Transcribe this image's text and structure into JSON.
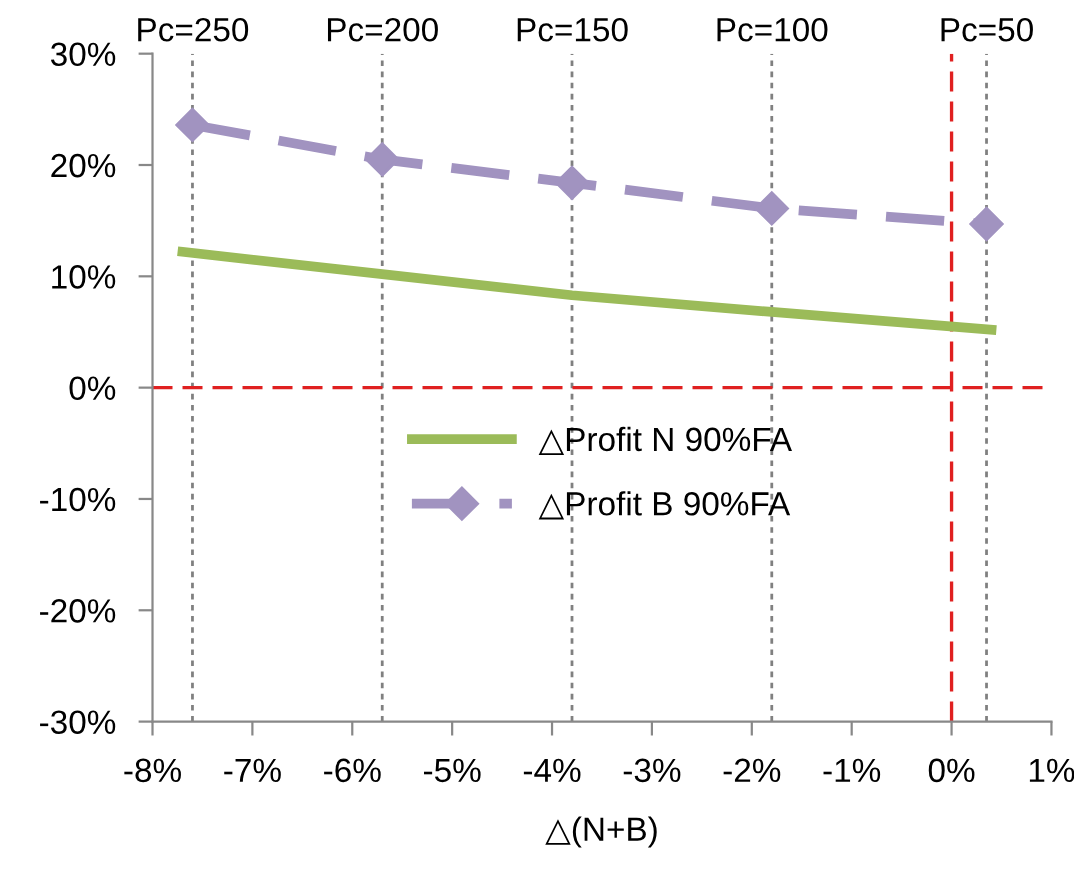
{
  "chart_data": {
    "type": "line",
    "xlabel": "△(N+B)",
    "series": [
      {
        "name": "△Profit N 90%FA",
        "color": "#9bbb59",
        "line_style": "solid",
        "marker": "none",
        "x": [
          -7.7,
          -5.7,
          -3.8,
          -1.8,
          0.4
        ],
        "values": [
          12.2,
          10.2,
          8.3,
          6.8,
          5.2
        ]
      },
      {
        "name": "△Profit B 90%FA",
        "color": "#a193c0",
        "line_style": "dashed",
        "marker": "diamond",
        "x": [
          -7.6,
          -5.7,
          -3.8,
          -1.8,
          0.35
        ],
        "values": [
          23.6,
          20.5,
          18.4,
          16.1,
          14.7
        ]
      }
    ],
    "xlim": [
      -8,
      1
    ],
    "xticks": [
      {
        "value": -8,
        "label": "-8%"
      },
      {
        "value": -7,
        "label": "-7%"
      },
      {
        "value": -6,
        "label": "-6%"
      },
      {
        "value": -5,
        "label": "-5%"
      },
      {
        "value": -4,
        "label": "-4%"
      },
      {
        "value": -3,
        "label": "-3%"
      },
      {
        "value": -2,
        "label": "-2%"
      },
      {
        "value": -1,
        "label": "-1%"
      },
      {
        "value": 0,
        "label": "0%"
      },
      {
        "value": 1,
        "label": "1%"
      }
    ],
    "ylim": [
      -30,
      30
    ],
    "yticks": [
      {
        "value": -30,
        "label": "-30%"
      },
      {
        "value": -20,
        "label": "-20%"
      },
      {
        "value": -10,
        "label": "-10%"
      },
      {
        "value": 0,
        "label": "0%"
      },
      {
        "value": 10,
        "label": "10%"
      },
      {
        "value": 20,
        "label": "20%"
      },
      {
        "value": 30,
        "label": "30%"
      }
    ],
    "ref_lines": [
      {
        "axis": "x",
        "value": -7.6,
        "color": "#808080",
        "line_style": "dotted"
      },
      {
        "axis": "x",
        "value": -5.7,
        "color": "#808080",
        "line_style": "dotted"
      },
      {
        "axis": "x",
        "value": -3.8,
        "color": "#808080",
        "line_style": "dotted"
      },
      {
        "axis": "x",
        "value": -1.8,
        "color": "#808080",
        "line_style": "dotted"
      },
      {
        "axis": "x",
        "value": 0.35,
        "color": "#808080",
        "line_style": "dotted"
      },
      {
        "axis": "x",
        "value": 0,
        "color": "#e02020",
        "line_style": "dashed"
      },
      {
        "axis": "y",
        "value": 0,
        "color": "#e02020",
        "line_style": "dashed"
      }
    ],
    "annotations": [
      {
        "text": "Pc=250",
        "x": -7.6,
        "y": 30
      },
      {
        "text": "Pc=200",
        "x": -5.7,
        "y": 30
      },
      {
        "text": "Pc=150",
        "x": -3.8,
        "y": 30
      },
      {
        "text": "Pc=100",
        "x": -1.8,
        "y": 30
      },
      {
        "text": "Pc=50",
        "x": 0.35,
        "y": 30
      }
    ],
    "grid": false,
    "legend": "center"
  }
}
